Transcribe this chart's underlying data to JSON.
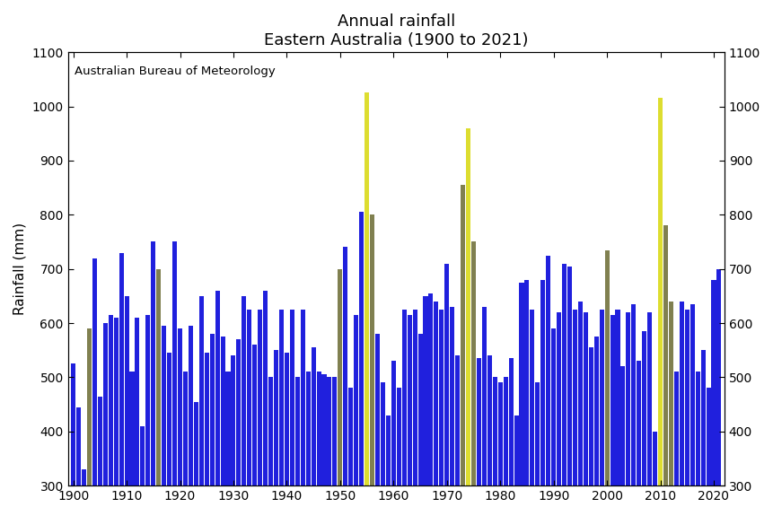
{
  "title_line1": "Annual rainfall",
  "title_line2": "Eastern Australia (1900 to 2021)",
  "xlabel": "",
  "ylabel": "Rainfall (mm)",
  "annotation": "Australian Bureau of Meteorology",
  "ylim": [
    300,
    1100
  ],
  "yticks": [
    300,
    400,
    500,
    600,
    700,
    800,
    900,
    1000,
    1100
  ],
  "xticks": [
    1900,
    1910,
    1920,
    1930,
    1940,
    1950,
    1960,
    1970,
    1980,
    1990,
    2000,
    2010,
    2020
  ],
  "bg_color": "#ffffff",
  "bar_width": 0.85,
  "years": [
    1900,
    1901,
    1902,
    1903,
    1904,
    1905,
    1906,
    1907,
    1908,
    1909,
    1910,
    1911,
    1912,
    1913,
    1914,
    1915,
    1916,
    1917,
    1918,
    1919,
    1920,
    1921,
    1922,
    1923,
    1924,
    1925,
    1926,
    1927,
    1928,
    1929,
    1930,
    1931,
    1932,
    1933,
    1934,
    1935,
    1936,
    1937,
    1938,
    1939,
    1940,
    1941,
    1942,
    1943,
    1944,
    1945,
    1946,
    1947,
    1948,
    1949,
    1950,
    1951,
    1952,
    1953,
    1954,
    1955,
    1956,
    1957,
    1958,
    1959,
    1960,
    1961,
    1962,
    1963,
    1964,
    1965,
    1966,
    1967,
    1968,
    1969,
    1970,
    1971,
    1972,
    1973,
    1974,
    1975,
    1976,
    1977,
    1978,
    1979,
    1980,
    1981,
    1982,
    1983,
    1984,
    1985,
    1986,
    1987,
    1988,
    1989,
    1990,
    1991,
    1992,
    1993,
    1994,
    1995,
    1996,
    1997,
    1998,
    1999,
    2000,
    2001,
    2002,
    2003,
    2004,
    2005,
    2006,
    2007,
    2008,
    2009,
    2010,
    2011,
    2012,
    2013,
    2014,
    2015,
    2016,
    2017,
    2018,
    2019,
    2020,
    2021
  ],
  "values": [
    525,
    445,
    330,
    590,
    720,
    465,
    600,
    615,
    610,
    730,
    650,
    510,
    610,
    410,
    615,
    750,
    700,
    595,
    545,
    750,
    590,
    510,
    595,
    455,
    650,
    545,
    580,
    660,
    575,
    510,
    540,
    570,
    650,
    625,
    560,
    625,
    660,
    500,
    550,
    625,
    545,
    625,
    500,
    625,
    510,
    555,
    510,
    505,
    500,
    500,
    700,
    740,
    480,
    615,
    805,
    1025,
    800,
    580,
    490,
    430,
    530,
    480,
    625,
    615,
    625,
    580,
    650,
    655,
    640,
    625,
    710,
    630,
    540,
    855,
    960,
    750,
    535,
    630,
    540,
    500,
    490,
    500,
    535,
    430,
    675,
    680,
    625,
    490,
    680,
    725,
    590,
    620,
    710,
    705,
    625,
    640,
    620,
    555,
    575,
    625,
    735,
    615,
    625,
    520,
    620,
    635,
    530,
    585,
    620,
    400,
    1015,
    780,
    640,
    510,
    640,
    625,
    635,
    510,
    550,
    480,
    680,
    700
  ],
  "gray_years": [
    1903,
    1916,
    1950,
    1955,
    1956,
    1973,
    1974,
    1975,
    2000,
    2010,
    2011,
    2012
  ],
  "yellow_years": [
    1955,
    1974,
    2010
  ],
  "color_blue": "#2020dd",
  "color_gray": "#808050",
  "color_yellow": "#dddd30"
}
